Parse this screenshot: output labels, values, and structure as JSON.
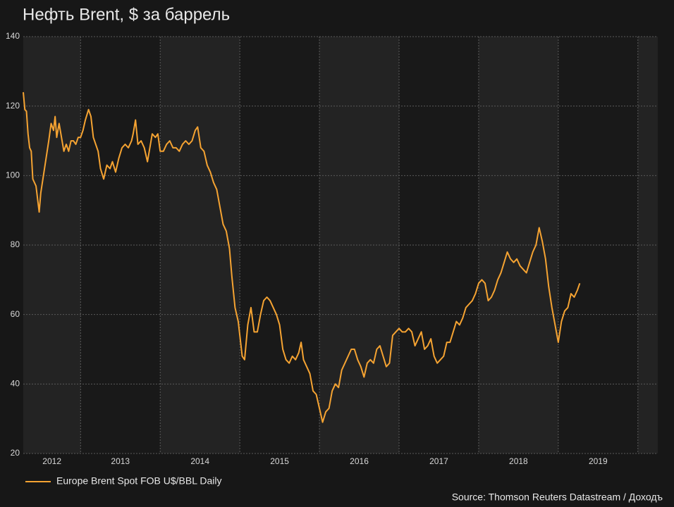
{
  "chart_data": {
    "type": "line",
    "title": "Нефть Brent, $ за баррель",
    "x": [
      2012.28,
      2012.3,
      2012.32,
      2012.34,
      2012.36,
      2012.38,
      2012.4,
      2012.44,
      2012.48,
      2012.5,
      2012.54,
      2012.58,
      2012.6,
      2012.63,
      2012.66,
      2012.68,
      2012.7,
      2012.73,
      2012.76,
      2012.79,
      2012.82,
      2012.85,
      2012.88,
      2012.91,
      2012.94,
      2012.97,
      2013.0,
      2013.03,
      2013.06,
      2013.1,
      2013.13,
      2013.16,
      2013.19,
      2013.22,
      2013.25,
      2013.29,
      2013.33,
      2013.37,
      2013.4,
      2013.44,
      2013.48,
      2013.52,
      2013.56,
      2013.6,
      2013.64,
      2013.66,
      2013.69,
      2013.72,
      2013.76,
      2013.8,
      2013.84,
      2013.87,
      2013.9,
      2013.94,
      2013.97,
      2014.0,
      2014.04,
      2014.08,
      2014.12,
      2014.16,
      2014.2,
      2014.24,
      2014.28,
      2014.32,
      2014.36,
      2014.4,
      2014.44,
      2014.47,
      2014.51,
      2014.55,
      2014.59,
      2014.63,
      2014.67,
      2014.71,
      2014.75,
      2014.79,
      2014.83,
      2014.87,
      2014.9,
      2014.94,
      2014.98,
      2015.03,
      2015.06,
      2015.1,
      2015.14,
      2015.18,
      2015.22,
      2015.26,
      2015.3,
      2015.34,
      2015.38,
      2015.42,
      2015.46,
      2015.5,
      2015.54,
      2015.58,
      2015.62,
      2015.66,
      2015.7,
      2015.74,
      2015.77,
      2015.8,
      2015.84,
      2015.88,
      2015.92,
      2015.96,
      2016.04,
      2016.08,
      2016.12,
      2016.16,
      2016.2,
      2016.24,
      2016.28,
      2016.32,
      2016.36,
      2016.4,
      2016.44,
      2016.48,
      2016.52,
      2016.56,
      2016.6,
      2016.64,
      2016.68,
      2016.72,
      2016.76,
      2016.8,
      2016.84,
      2016.88,
      2016.92,
      2016.96,
      2017.0,
      2017.04,
      2017.08,
      2017.12,
      2017.16,
      2017.2,
      2017.24,
      2017.28,
      2017.32,
      2017.36,
      2017.4,
      2017.44,
      2017.48,
      2017.52,
      2017.56,
      2017.6,
      2017.64,
      2017.68,
      2017.72,
      2017.76,
      2017.8,
      2017.84,
      2017.88,
      2017.92,
      2017.96,
      2018.0,
      2018.04,
      2018.08,
      2018.12,
      2018.16,
      2018.2,
      2018.24,
      2018.28,
      2018.32,
      2018.36,
      2018.4,
      2018.44,
      2018.48,
      2018.52,
      2018.56,
      2018.6,
      2018.64,
      2018.68,
      2018.72,
      2018.76,
      2018.8,
      2018.84,
      2018.88,
      2018.92,
      2018.96,
      2019.0,
      2019.04,
      2019.08,
      2019.12,
      2019.16,
      2019.2,
      2019.24,
      2019.27
    ],
    "series": [
      {
        "name": "Europe Brent Spot FOB U$/BBL Daily",
        "color": "#f5a332",
        "values": [
          124,
          119,
          118.5,
          112,
          108,
          107,
          99,
          97,
          89.5,
          95,
          101,
          107,
          110,
          115,
          113,
          117,
          111,
          115,
          111,
          107,
          109,
          107,
          110,
          110,
          109,
          111,
          111,
          113,
          116,
          119,
          117,
          111,
          109,
          107,
          102,
          99,
          103,
          102,
          104,
          101,
          105,
          108,
          109,
          108,
          110,
          112,
          116,
          109,
          110,
          108,
          104,
          108,
          112,
          111,
          112,
          107,
          107,
          109,
          110,
          108,
          108,
          107,
          109,
          110,
          109,
          110,
          113,
          114,
          108,
          107,
          103,
          101,
          98,
          96,
          91,
          86,
          84,
          79,
          71,
          62,
          58,
          48,
          47,
          57,
          62,
          55,
          55,
          60,
          64,
          65,
          64,
          62,
          60,
          57,
          50,
          47,
          46,
          48,
          47,
          49,
          52,
          47,
          45,
          43,
          38,
          37,
          29,
          32,
          33,
          38,
          40,
          39,
          44,
          46,
          48,
          50,
          50,
          47,
          45,
          42,
          46,
          47,
          46,
          50,
          51,
          48,
          45,
          46,
          54,
          55,
          56,
          55,
          55,
          56,
          55,
          51,
          53,
          55,
          50,
          51,
          53,
          48,
          46,
          47,
          48,
          52,
          52,
          55,
          58,
          57,
          59,
          62,
          63,
          64,
          66,
          69,
          70,
          69,
          64,
          65,
          67,
          70,
          72,
          75,
          78,
          76,
          75,
          76,
          74,
          73,
          72,
          75,
          78,
          80,
          85,
          81,
          76,
          68,
          62,
          57,
          52,
          58,
          61,
          62,
          66,
          65,
          67,
          69
        ]
      }
    ],
    "xlim": [
      2012.28,
      2020.25
    ],
    "xticks": [
      2012,
      2013,
      2014,
      2015,
      2016,
      2017,
      2018,
      2019
    ],
    "ylim": [
      20,
      140
    ],
    "yticks": [
      20,
      40,
      60,
      80,
      100,
      120,
      140
    ],
    "grid": true,
    "source": "Source: Thomson Reuters Datastream / Доходъ"
  }
}
